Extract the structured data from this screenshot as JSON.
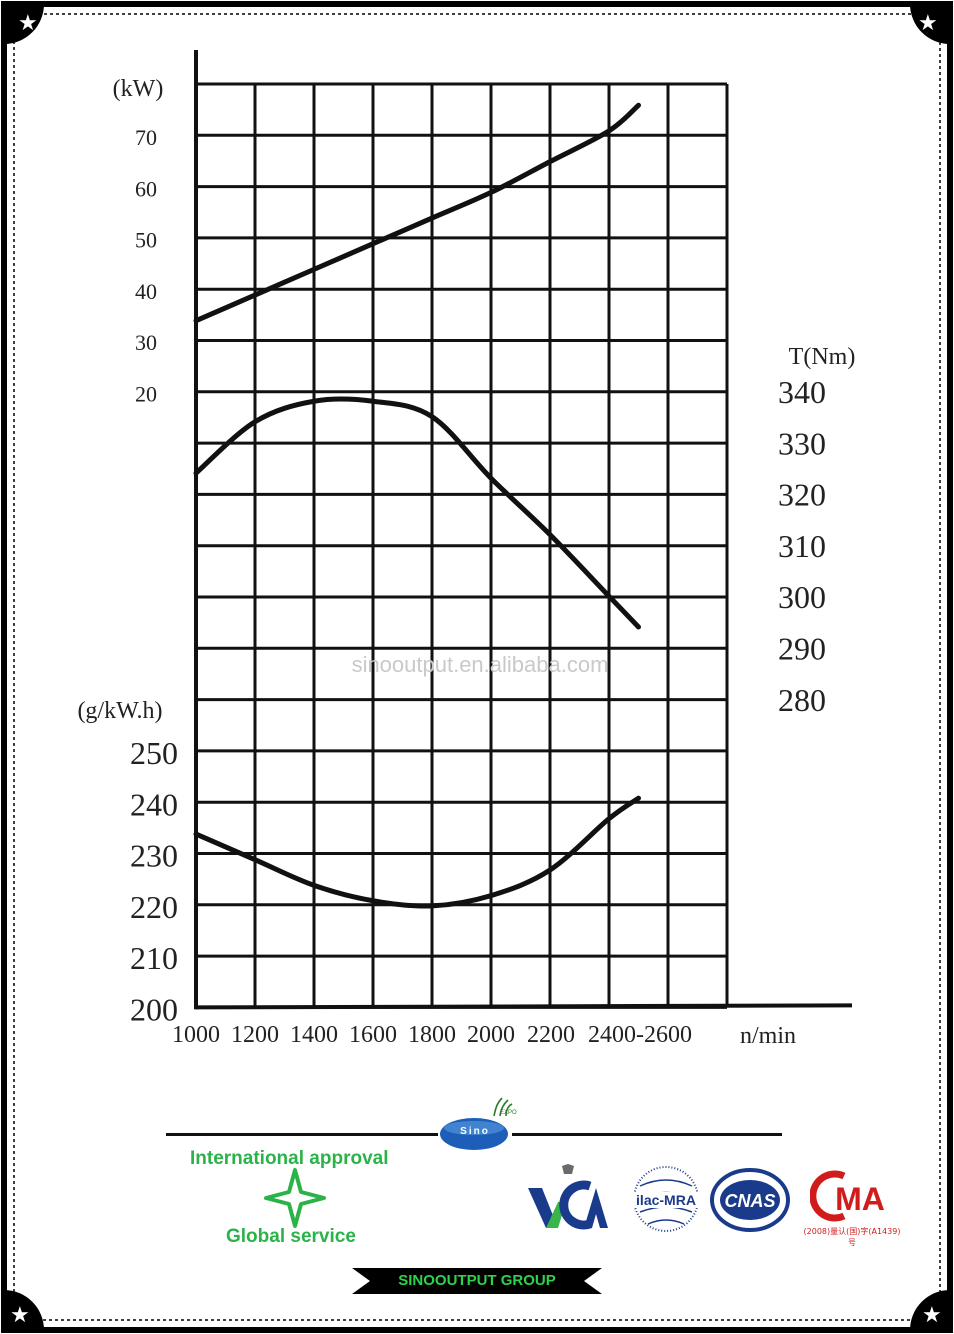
{
  "chart_data": {
    "type": "line",
    "x": [
      1000,
      1200,
      1400,
      1600,
      1800,
      2000,
      2200,
      2400,
      2600
    ],
    "x_tick_labels": [
      "1000",
      "1200",
      "1400",
      "1600",
      "1800",
      "2000",
      "2200",
      "2400-2600"
    ],
    "xlabel": "n/min",
    "xlim": [
      1000,
      2800
    ],
    "axes": {
      "power": {
        "label": "(kW)",
        "ticks": [
          "70",
          "60",
          "50",
          "40",
          "30",
          "20"
        ],
        "tick_values": [
          70,
          60,
          50,
          40,
          30,
          20
        ]
      },
      "torque": {
        "label": "T(Nm)",
        "ticks": [
          "340",
          "330",
          "320",
          "310",
          "300",
          "290",
          "280"
        ],
        "tick_values": [
          340,
          330,
          320,
          310,
          300,
          290,
          280
        ]
      },
      "fuel": {
        "label": "(g/kW.h)",
        "ticks": [
          "250",
          "240",
          "230",
          "220",
          "210",
          "200"
        ],
        "tick_values": [
          250,
          240,
          230,
          220,
          210,
          200
        ]
      }
    },
    "series": [
      {
        "axis": "power",
        "x": [
          1000,
          1200,
          1400,
          1600,
          1800,
          2000,
          2200,
          2400,
          2500
        ],
        "values": [
          34,
          39,
          44,
          49,
          54,
          59,
          65,
          71,
          76
        ]
      },
      {
        "axis": "torque",
        "x": [
          1000,
          1200,
          1400,
          1600,
          1800,
          2000,
          2200,
          2400,
          2500
        ],
        "values": [
          324,
          334,
          338,
          338,
          335,
          323,
          312,
          300,
          294
        ]
      },
      {
        "axis": "fuel",
        "x": [
          1000,
          1200,
          1400,
          1600,
          1800,
          2000,
          2200,
          2400,
          2500
        ],
        "values": [
          234,
          229,
          224,
          221,
          220,
          222,
          227,
          237,
          241
        ]
      }
    ],
    "grid": true
  },
  "watermark": "sinooutput.en.alibaba.com",
  "footer": {
    "approval_text": "International approval",
    "service_text": "Global service",
    "sino_logo_text": "Sino",
    "expo_text": "EXPO",
    "group_name": "SINOOUTPUT GROUP",
    "cert_logos": [
      {
        "name": "VCA",
        "text": "VCA",
        "color": "#1a3a8c"
      },
      {
        "name": "ilac-MRA",
        "text": "ilac-MRA",
        "color": "#1a3a8c"
      },
      {
        "name": "CNAS",
        "text": "CNAS",
        "color": "#1a3a8c"
      },
      {
        "name": "CMA",
        "text": "MA",
        "color": "#d11c1c"
      }
    ],
    "cma_caption": "(2008)量认(国)字(A1439)号",
    "accent_color": "#2bb34a"
  }
}
